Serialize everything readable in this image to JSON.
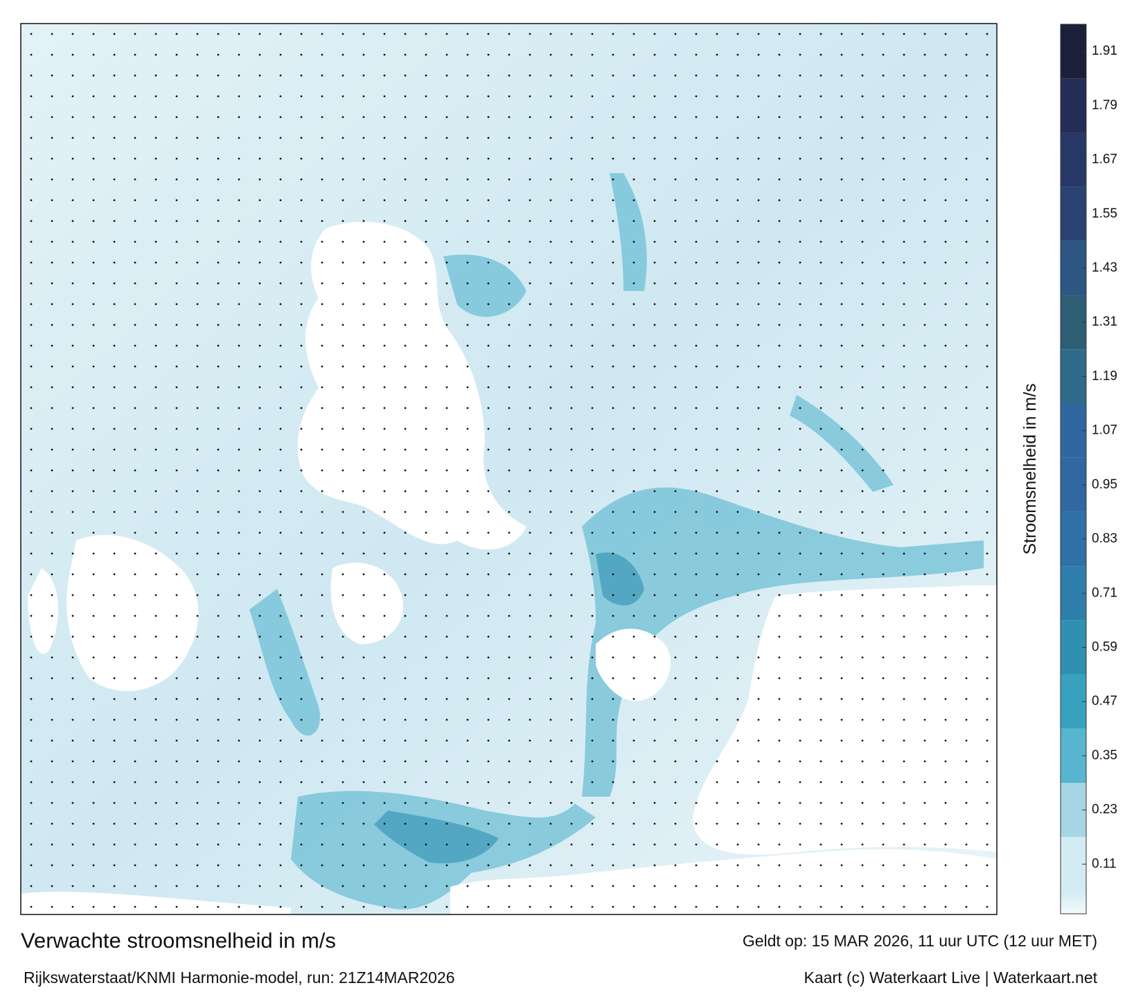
{
  "chart_data": {
    "type": "map",
    "title": "Verwachte stroomsnelheid in m/s",
    "valid_time": "Geldt op: 15 MAR 2026, 11 uur UTC (12 uur MET)",
    "source": "Rijkswaterstaat/KNMI Harmonie-model, run: 21Z14MAR2026",
    "credit": "Kaart (c) Waterkaart Live | Waterkaart.net",
    "colorbar": {
      "label": "Stroomsnelheid in m/s",
      "clim": [
        0,
        1.97
      ],
      "ticks": [
        0.11,
        0.23,
        0.35,
        0.47,
        0.59,
        0.71,
        0.83,
        0.95,
        1.07,
        1.19,
        1.31,
        1.43,
        1.55,
        1.67,
        1.79,
        1.91
      ],
      "colors": [
        "#d3ebf2",
        "#a6d6e5",
        "#58b5cf",
        "#39a1c0",
        "#2f90b2",
        "#2e7eac",
        "#2f70a6",
        "#2f68a2",
        "#2f68a0",
        "#2f6b8a",
        "#2e5e74",
        "#2d5683",
        "#2a4272",
        "#283866",
        "#232d55",
        "#1b1f3a"
      ]
    }
  }
}
